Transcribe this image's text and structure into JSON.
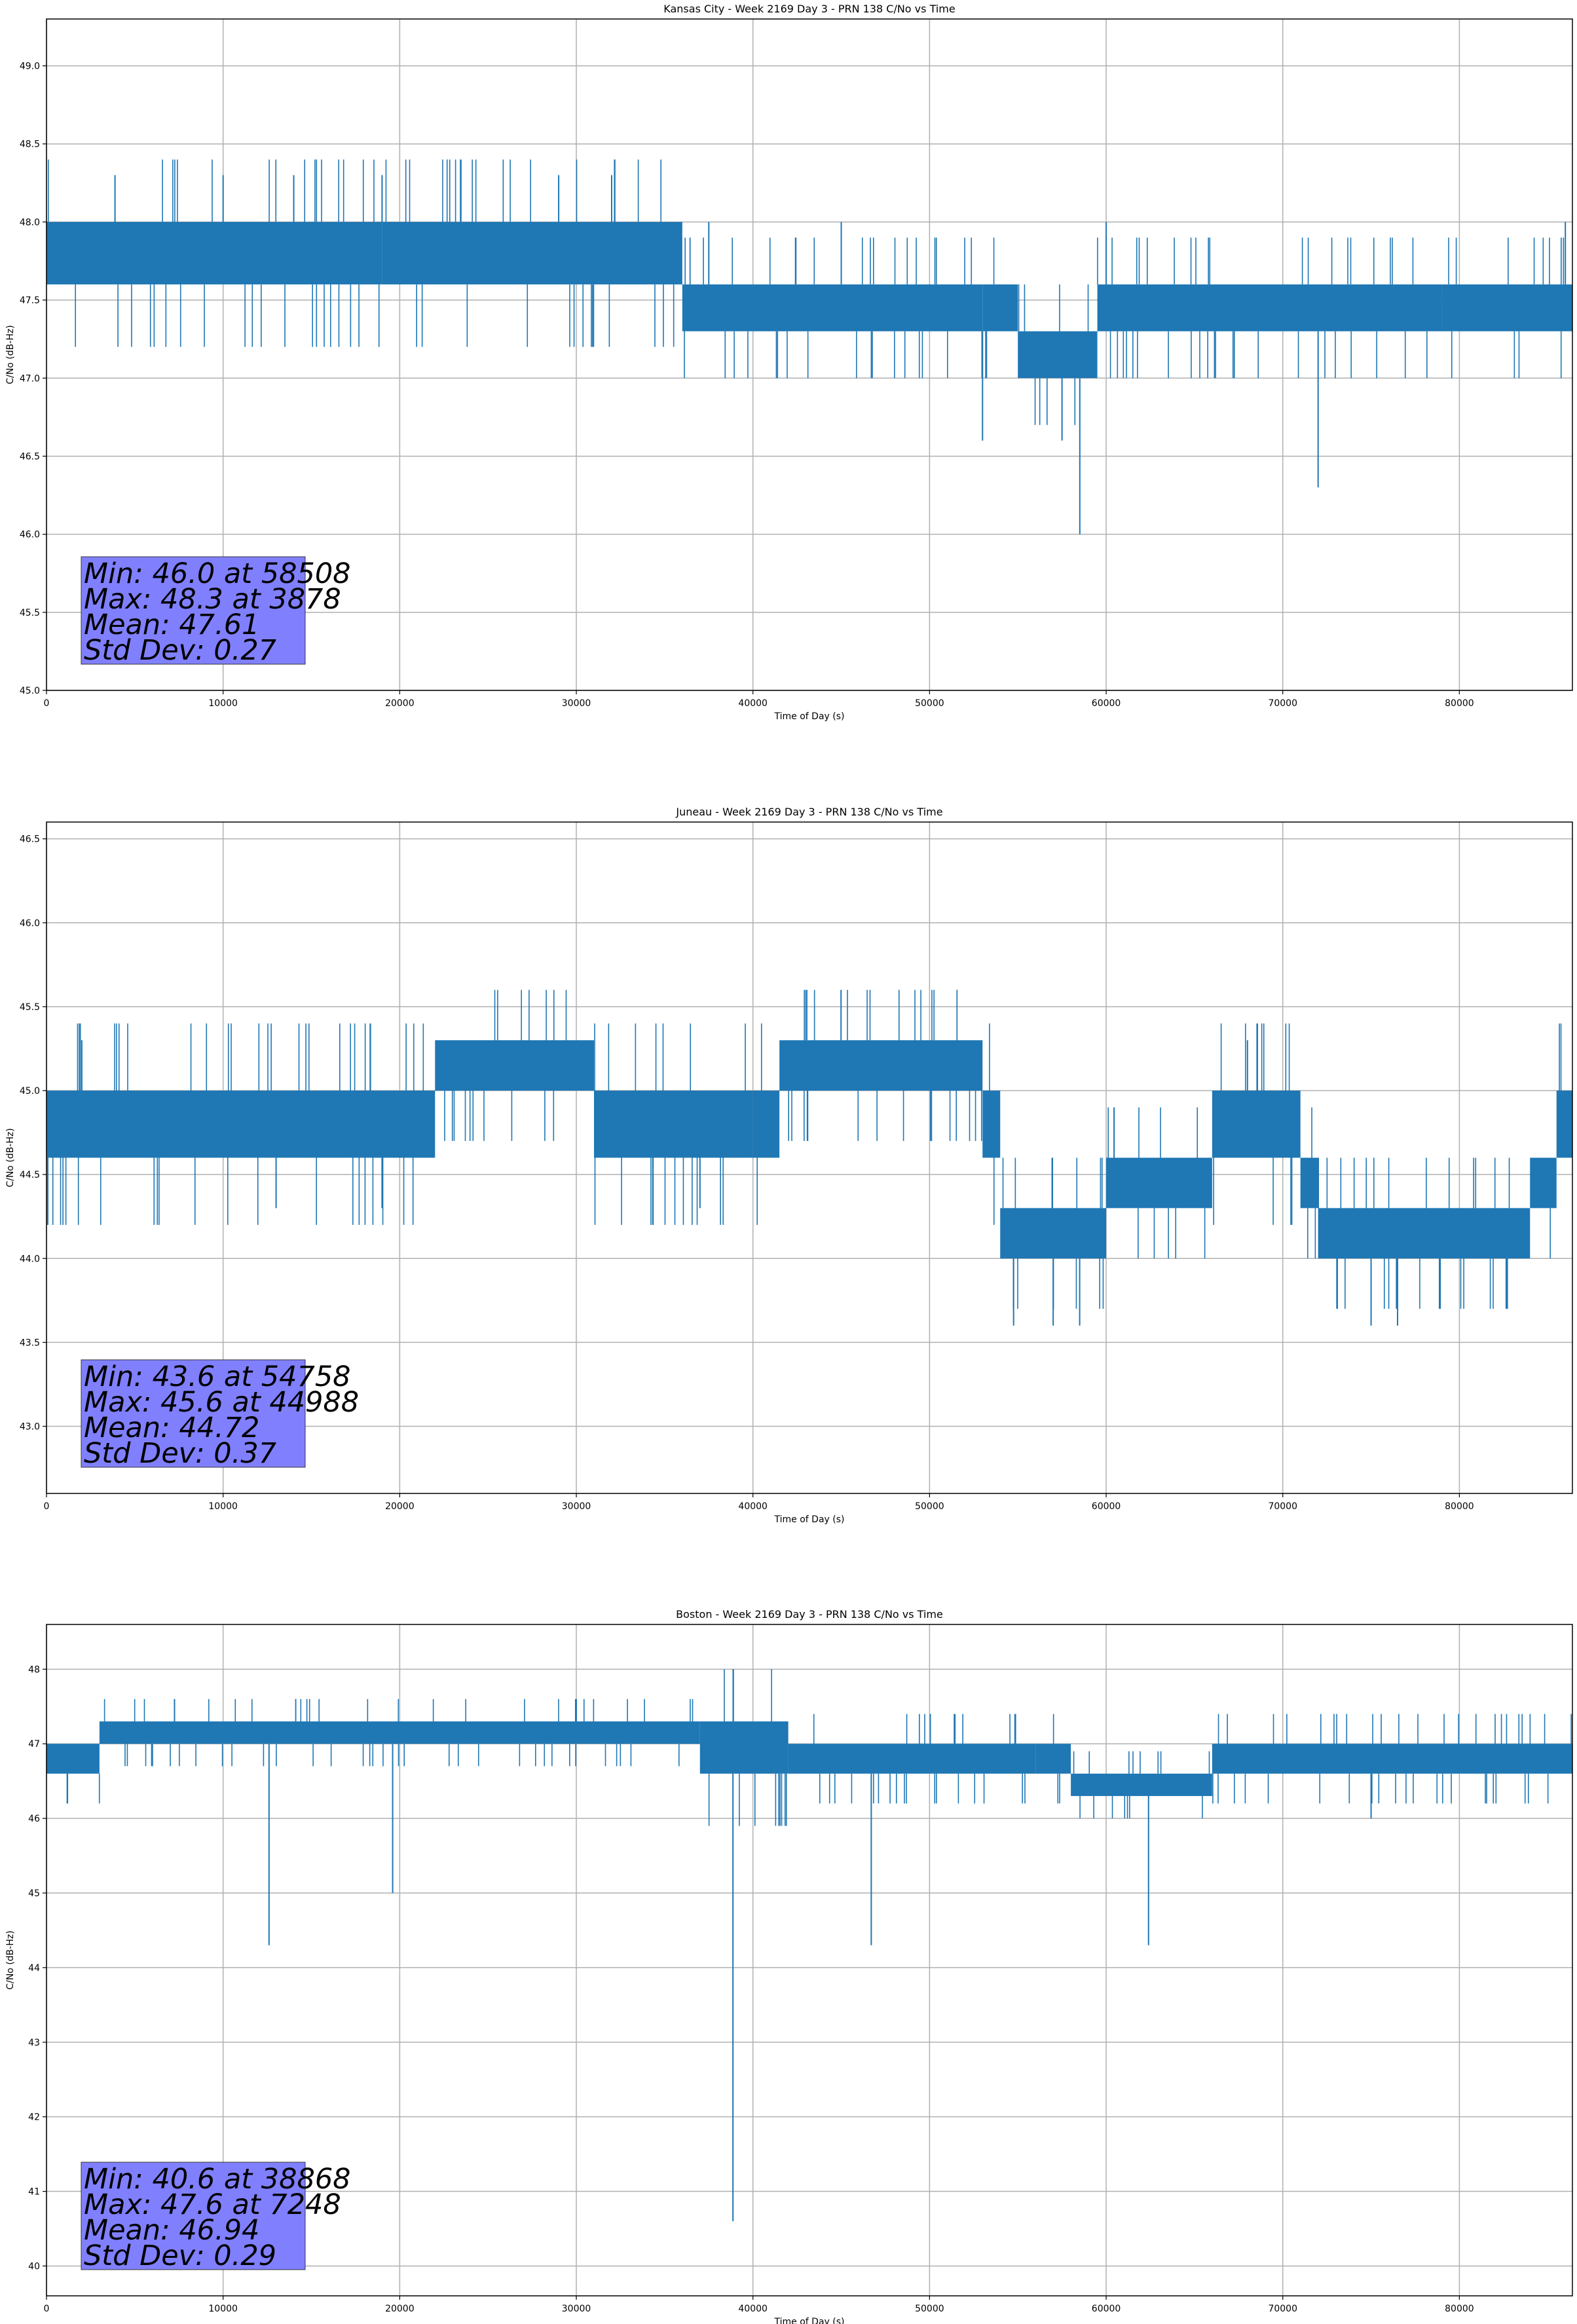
{
  "chart_data": [
    {
      "type": "line",
      "title": "Kansas City - Week 2169 Day 3 - PRN 138 C/No vs Time",
      "xlabel": "Time of Day (s)",
      "ylabel": "C/No (dB-Hz)",
      "xlim": [
        0,
        86400
      ],
      "ylim": [
        45.0,
        49.3
      ],
      "xticks": [
        "0",
        "10000",
        "20000",
        "30000",
        "40000",
        "50000",
        "60000",
        "70000",
        "80000"
      ],
      "yticks": [
        "45.0",
        "45.5",
        "46.0",
        "46.5",
        "47.0",
        "47.5",
        "48.0",
        "48.5",
        "49.0"
      ],
      "grid": true,
      "series_color": "#1f77b4",
      "stats": [
        "Min: 46.0 at 58508",
        "Max: 48.3 at 3878",
        "Mean: 47.61",
        "Std Dev: 0.27"
      ],
      "band_segments": [
        [
          0,
          19000,
          47.6,
          48.0
        ],
        [
          19000,
          36000,
          47.6,
          48.0
        ],
        [
          36000,
          53000,
          47.3,
          47.6
        ],
        [
          53000,
          55000,
          47.3,
          47.6
        ],
        [
          55000,
          59500,
          47.0,
          47.3
        ],
        [
          59500,
          79000,
          47.3,
          47.6
        ],
        [
          79000,
          86400,
          47.3,
          47.6
        ]
      ],
      "spikes": [
        [
          3878,
          48.3
        ],
        [
          10000,
          48.3
        ],
        [
          14000,
          48.3
        ],
        [
          19000,
          48.3
        ],
        [
          29000,
          48.3
        ],
        [
          32000,
          48.3
        ],
        [
          37500,
          48.0
        ],
        [
          45000,
          48.0
        ],
        [
          53000,
          46.6
        ],
        [
          57500,
          46.6
        ],
        [
          58508,
          46.0
        ],
        [
          60000,
          48.0
        ],
        [
          72000,
          46.3
        ],
        [
          86000,
          48.0
        ]
      ]
    },
    {
      "type": "line",
      "title": "Juneau - Week 2169 Day 3 - PRN 138 C/No vs Time",
      "xlabel": "Time of Day (s)",
      "ylabel": "C/No (dB-Hz)",
      "xlim": [
        0,
        86400
      ],
      "ylim": [
        42.6,
        46.6
      ],
      "xticks": [
        "0",
        "10000",
        "20000",
        "30000",
        "40000",
        "50000",
        "60000",
        "70000",
        "80000"
      ],
      "yticks": [
        "43.0",
        "43.5",
        "44.0",
        "44.5",
        "45.0",
        "45.5",
        "46.0",
        "46.5"
      ],
      "grid": true,
      "series_color": "#1f77b4",
      "stats": [
        "Min: 43.6 at 54758",
        "Max: 45.6 at 44988",
        "Mean: 44.72",
        "Std Dev: 0.37"
      ],
      "band_segments": [
        [
          0,
          22000,
          44.6,
          45.0
        ],
        [
          22000,
          31000,
          45.0,
          45.3
        ],
        [
          31000,
          40000,
          44.6,
          45.0
        ],
        [
          40000,
          41500,
          44.6,
          45.0
        ],
        [
          41500,
          53000,
          45.0,
          45.3
        ],
        [
          53000,
          54000,
          44.6,
          45.0
        ],
        [
          54000,
          60000,
          44.0,
          44.3
        ],
        [
          60000,
          66000,
          44.3,
          44.6
        ],
        [
          66000,
          71000,
          44.6,
          45.0
        ],
        [
          71000,
          72000,
          44.3,
          44.6
        ],
        [
          72000,
          84000,
          44.0,
          44.3
        ],
        [
          84000,
          85500,
          44.3,
          44.6
        ],
        [
          85500,
          86400,
          44.6,
          45.0
        ]
      ],
      "spikes": [
        [
          2000,
          45.3
        ],
        [
          13000,
          44.3
        ],
        [
          19000,
          44.3
        ],
        [
          37000,
          44.3
        ],
        [
          44988,
          45.6
        ],
        [
          54758,
          43.6
        ],
        [
          57000,
          43.6
        ],
        [
          58500,
          43.6
        ],
        [
          68000,
          45.3
        ],
        [
          75000,
          43.6
        ],
        [
          76500,
          43.6
        ],
        [
          86000,
          45.0
        ]
      ]
    },
    {
      "type": "line",
      "title": "Boston - Week 2169 Day 3 - PRN 138 C/No vs Time",
      "xlabel": "Time of Day (s)",
      "ylabel": "C/No (dB-Hz)",
      "xlim": [
        0,
        86400
      ],
      "ylim": [
        39.6,
        48.6
      ],
      "xticks": [
        "0",
        "10000",
        "20000",
        "30000",
        "40000",
        "50000",
        "60000",
        "70000",
        "80000"
      ],
      "yticks": [
        "40",
        "41",
        "42",
        "43",
        "44",
        "45",
        "46",
        "47",
        "48"
      ],
      "grid": true,
      "series_color": "#1f77b4",
      "stats": [
        "Min: 40.6 at 38868",
        "Max: 47.6 at 7248",
        "Mean: 46.94",
        "Std Dev: 0.29"
      ],
      "band_segments": [
        [
          0,
          3000,
          46.6,
          47.0
        ],
        [
          3000,
          37000,
          47.0,
          47.3
        ],
        [
          37000,
          42000,
          46.6,
          47.3
        ],
        [
          42000,
          56000,
          46.6,
          47.0
        ],
        [
          56000,
          58000,
          46.6,
          47.0
        ],
        [
          58000,
          66000,
          46.3,
          46.6
        ],
        [
          66000,
          86400,
          46.6,
          47.0
        ]
      ],
      "spikes": [
        [
          7248,
          47.6
        ],
        [
          12600,
          44.3
        ],
        [
          19600,
          45.0
        ],
        [
          38868,
          40.6
        ],
        [
          46700,
          44.3
        ],
        [
          62400,
          44.3
        ],
        [
          75000,
          46.0
        ]
      ]
    }
  ]
}
